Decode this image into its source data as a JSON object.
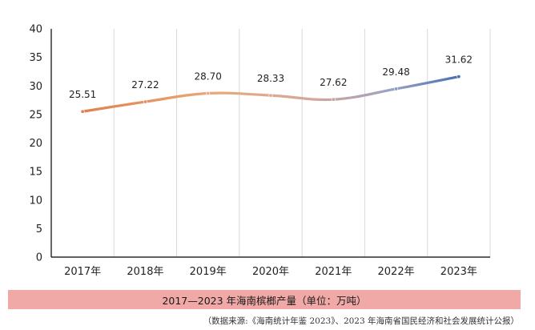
{
  "chart_data": {
    "type": "line",
    "categories": [
      "2017年",
      "2018年",
      "2019年",
      "2020年",
      "2021年",
      "2022年",
      "2023年"
    ],
    "values": [
      25.51,
      27.22,
      28.7,
      28.33,
      27.62,
      29.48,
      31.62
    ],
    "data_labels": [
      "25.51",
      "27.22",
      "28.70",
      "28.33",
      "27.62",
      "29.48",
      "31.62"
    ],
    "ylim": [
      0,
      40
    ],
    "yticks": [
      "0",
      "5",
      "10",
      "15",
      "20",
      "25",
      "30",
      "35",
      "40"
    ],
    "grid": "vertical",
    "line_colors": [
      "#e2804d",
      "#e8a978",
      "#d6a799",
      "#9aa3c4",
      "#4a6fb3"
    ]
  },
  "caption": "2017—2023 年海南槟榔产量（单位：万吨）",
  "source": "（数据来源:《海南统计年鉴 2023》、2023 年海南省国民经济和社会发展统计公报）"
}
